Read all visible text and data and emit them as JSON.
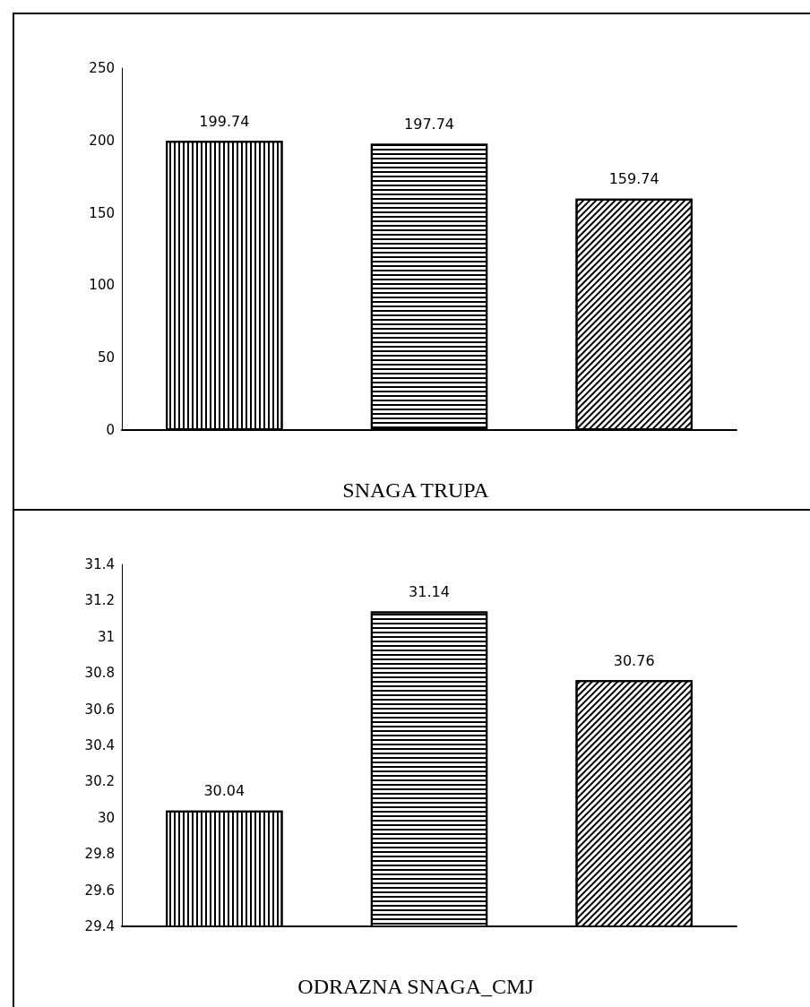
{
  "chart_data": [
    {
      "type": "bar",
      "title": "SNAGA TRUPA",
      "categories": [
        null,
        null,
        null
      ],
      "values": [
        199.74,
        197.74,
        159.74
      ],
      "color": "#000000",
      "ylim": [
        0,
        250
      ],
      "yticks": [
        0,
        50,
        100,
        150,
        200,
        250
      ],
      "data_labels": true,
      "grid": false,
      "tick_labels": "y"
    },
    {
      "type": "bar",
      "title": "ODRAZNA SNAGA_CMJ",
      "categories": [
        null,
        null,
        null
      ],
      "values": [
        30.04,
        31.14,
        30.76
      ],
      "color": "#000000",
      "ylim": [
        29.4,
        31.4
      ],
      "yticks": [
        29.4,
        29.6,
        29.8,
        30,
        30.2,
        30.4,
        30.6,
        30.8,
        31,
        31.2,
        31.4
      ],
      "data_labels": true,
      "grid": false,
      "tick_labels": "y"
    }
  ]
}
